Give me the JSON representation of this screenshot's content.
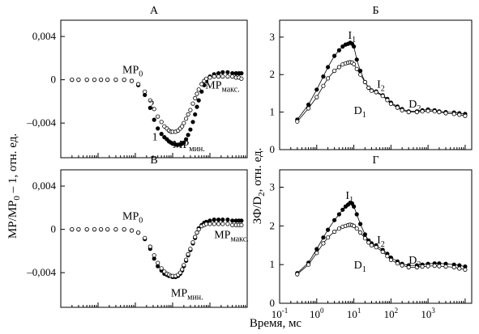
{
  "chart_data": [
    {
      "id": "A",
      "title": "А",
      "type": "scatter",
      "xscale": "log",
      "xlim": [
        0.01,
        1000
      ],
      "ylim": [
        -0.0072,
        0.0055
      ],
      "yticks": [
        0.004,
        0,
        -0.004
      ],
      "ytick_labels": [
        "0,004",
        "0",
        "–0,004"
      ],
      "series": [
        {
          "name": "1",
          "marker": "filled",
          "x": [
            0.02,
            0.03,
            0.05,
            0.08,
            0.12,
            0.18,
            0.3,
            0.5,
            0.8,
            1.2,
            1.8,
            2.5,
            3.2,
            4,
            5,
            6,
            7,
            8,
            9,
            10,
            12,
            14,
            16,
            18,
            20,
            23,
            26,
            30,
            35,
            40,
            45,
            50,
            60,
            70,
            80,
            100,
            130,
            170,
            220,
            300,
            400,
            500,
            600,
            700
          ],
          "y": [
            0,
            0,
            0,
            0,
            0,
            0,
            0,
            0,
            -0.0001,
            -0.0005,
            -0.0014,
            -0.0026,
            -0.0037,
            -0.0045,
            -0.005,
            -0.0053,
            -0.0055,
            -0.0057,
            -0.0058,
            -0.0059,
            -0.006,
            -0.006,
            -0.006,
            -0.0059,
            -0.0058,
            -0.0055,
            -0.0051,
            -0.0046,
            -0.0039,
            -0.0032,
            -0.0025,
            -0.0019,
            -0.0011,
            -0.0005,
            -0.0001,
            0.0003,
            0.0005,
            0.0006,
            0.0007,
            0.0007,
            0.0006,
            0.0006,
            0.0006,
            0.0006
          ]
        },
        {
          "name": "2",
          "marker": "open",
          "x": [
            0.02,
            0.03,
            0.05,
            0.08,
            0.12,
            0.18,
            0.3,
            0.5,
            0.8,
            1.2,
            1.8,
            2.5,
            3.2,
            4,
            5,
            6,
            7,
            8,
            9,
            10,
            12,
            14,
            16,
            18,
            20,
            23,
            26,
            30,
            35,
            40,
            45,
            50,
            60,
            70,
            80,
            100,
            130,
            170,
            220,
            300,
            400,
            500,
            600,
            700
          ],
          "y": [
            0,
            0,
            0,
            0,
            0,
            0,
            0,
            0,
            -0.0001,
            -0.0004,
            -0.0011,
            -0.0019,
            -0.0027,
            -0.0034,
            -0.0039,
            -0.0043,
            -0.0045,
            -0.0047,
            -0.0048,
            -0.0048,
            -0.0048,
            -0.0047,
            -0.0045,
            -0.0043,
            -0.004,
            -0.0036,
            -0.0032,
            -0.0028,
            -0.0022,
            -0.0017,
            -0.0013,
            -0.0009,
            -0.0004,
            -0.0001,
            0.0001,
            0.0002,
            0.0003,
            0.0003,
            0.0003,
            0.0003,
            0.0003,
            0.0002,
            0.0002,
            0.0001
          ]
        }
      ],
      "annotations": [
        {
          "text": "MP",
          "sub": "0",
          "x": 0.45,
          "y": 0.0006
        },
        {
          "text": "2",
          "x": 2.3,
          "y": -0.0026
        },
        {
          "text": "1",
          "x": 2.8,
          "y": -0.0056
        },
        {
          "text": "MP",
          "sub": "мин.",
          "x": 10,
          "y": -0.0063
        },
        {
          "text": "MP",
          "sub": "макс.",
          "x": 75,
          "y": -0.0008
        }
      ]
    },
    {
      "id": "B",
      "title": "Б",
      "type": "line",
      "xscale": "log",
      "xlim": [
        0.1,
        15000
      ],
      "ylim": [
        0,
        3.45
      ],
      "yticks": [
        0,
        1,
        2,
        3
      ],
      "ytick_labels": [
        "0",
        "1",
        "2",
        "3"
      ],
      "series": [
        {
          "name": "I",
          "marker": "filled",
          "x": [
            0.3,
            0.6,
            1,
            1.5,
            2,
            3,
            4,
            5,
            6,
            7,
            8,
            9,
            10,
            12,
            15,
            20,
            25,
            30,
            40,
            60,
            80,
            100,
            150,
            200,
            300,
            500,
            700,
            1000,
            1500,
            2000,
            3000,
            5000,
            7000,
            10000
          ],
          "y": [
            0.8,
            1.2,
            1.6,
            1.95,
            2.2,
            2.5,
            2.65,
            2.75,
            2.8,
            2.82,
            2.85,
            2.82,
            2.75,
            2.4,
            2.1,
            1.8,
            1.65,
            1.58,
            1.55,
            1.45,
            1.35,
            1.25,
            1.15,
            1.08,
            1.02,
            1.02,
            1.05,
            1.07,
            1.05,
            1.02,
            1,
            0.99,
            0.97,
            0.95
          ]
        },
        {
          "name": "D",
          "marker": "open",
          "x": [
            0.3,
            0.6,
            1,
            1.5,
            2,
            3,
            4,
            5,
            6,
            7,
            8,
            9,
            10,
            12,
            15,
            20,
            25,
            30,
            40,
            60,
            80,
            100,
            150,
            200,
            300,
            500,
            700,
            1000,
            1500,
            2000,
            3000,
            5000,
            7000,
            10000
          ],
          "y": [
            0.75,
            1.1,
            1.4,
            1.7,
            1.9,
            2.1,
            2.2,
            2.27,
            2.3,
            2.32,
            2.33,
            2.32,
            2.28,
            2.15,
            2,
            1.8,
            1.65,
            1.57,
            1.53,
            1.43,
            1.32,
            1.22,
            1.12,
            1.05,
            1,
            1,
            1.02,
            1.03,
            1.02,
            1,
            0.97,
            0.95,
            0.93,
            0.9
          ]
        }
      ],
      "annotations": [
        {
          "text": "I",
          "sub": "1",
          "x": 7,
          "y": 2.95
        },
        {
          "text": "I",
          "sub": "2",
          "x": 42,
          "y": 1.65
        },
        {
          "text": "D",
          "sub": "1",
          "x": 10,
          "y": 0.95
        },
        {
          "text": "D",
          "sub": "2",
          "x": 300,
          "y": 1.12
        }
      ]
    },
    {
      "id": "V",
      "title": "В",
      "type": "scatter",
      "xscale": "log",
      "xlim": [
        0.01,
        1000
      ],
      "ylim": [
        -0.0072,
        0.0055
      ],
      "yticks": [
        0.004,
        0,
        -0.004
      ],
      "ytick_labels": [
        "0,004",
        "0",
        "–0,004"
      ],
      "series": [
        {
          "name": "1",
          "marker": "filled",
          "x": [
            0.02,
            0.03,
            0.05,
            0.08,
            0.12,
            0.18,
            0.3,
            0.5,
            0.8,
            1.2,
            1.8,
            2.5,
            3.2,
            4,
            5,
            6,
            7,
            8,
            9,
            10,
            12,
            14,
            16,
            18,
            20,
            23,
            26,
            30,
            35,
            40,
            45,
            50,
            60,
            70,
            80,
            100,
            130,
            170,
            220,
            300,
            400,
            500,
            600,
            700
          ],
          "y": [
            0,
            0,
            0,
            0,
            0,
            0,
            0,
            0,
            -0.0001,
            -0.0003,
            -0.0009,
            -0.0018,
            -0.0027,
            -0.0034,
            -0.0038,
            -0.0041,
            -0.0042,
            -0.0043,
            -0.0043,
            -0.0044,
            -0.0044,
            -0.0043,
            -0.0041,
            -0.0038,
            -0.0034,
            -0.0029,
            -0.0024,
            -0.0019,
            -0.0013,
            -0.0008,
            -0.0003,
            0.0001,
            0.0004,
            0.0006,
            0.0007,
            0.0008,
            0.0009,
            0.0009,
            0.0009,
            0.0009,
            0.0008,
            0.0008,
            0.0008,
            0.0008
          ]
        },
        {
          "name": "2",
          "marker": "open",
          "x": [
            0.02,
            0.03,
            0.05,
            0.08,
            0.12,
            0.18,
            0.3,
            0.5,
            0.8,
            1.2,
            1.8,
            2.5,
            3.2,
            4,
            5,
            6,
            7,
            8,
            9,
            10,
            12,
            14,
            16,
            18,
            20,
            23,
            26,
            30,
            35,
            40,
            45,
            50,
            60,
            70,
            80,
            100,
            130,
            170,
            220,
            300,
            400,
            500,
            600,
            700
          ],
          "y": [
            0,
            0,
            0,
            0,
            0,
            0,
            0,
            0,
            -0.0001,
            -0.0003,
            -0.0008,
            -0.0016,
            -0.0024,
            -0.0031,
            -0.0036,
            -0.0039,
            -0.0041,
            -0.0042,
            -0.0043,
            -0.0043,
            -0.0043,
            -0.0042,
            -0.004,
            -0.0037,
            -0.0033,
            -0.0028,
            -0.0023,
            -0.0018,
            -0.0012,
            -0.0007,
            -0.0003,
            0,
            0.0003,
            0.0004,
            0.0005,
            0.0005,
            0.0005,
            0.0005,
            0.0005,
            0.0005,
            0.0004,
            0.0004,
            0.0004,
            0.0004
          ]
        }
      ],
      "annotations": [
        {
          "text": "MP",
          "sub": "0",
          "x": 0.45,
          "y": 0.0009
        },
        {
          "text": "MP",
          "sub": "мин.",
          "x": 9,
          "y": -0.0062
        },
        {
          "text": "MP",
          "sub": "макс.",
          "x": 130,
          "y": -0.0008
        }
      ]
    },
    {
      "id": "G",
      "title": "Г",
      "type": "line",
      "xscale": "log",
      "xlim": [
        0.1,
        15000
      ],
      "ylim": [
        0,
        3.45
      ],
      "yticks": [
        0,
        1,
        2,
        3
      ],
      "ytick_labels": [
        "0",
        "1",
        "2",
        "3"
      ],
      "xticks": [
        0.1,
        1,
        10,
        100,
        1000
      ],
      "xtick_labels": [
        {
          "base": "10",
          "exp": "-1"
        },
        {
          "base": "10",
          "exp": "0"
        },
        {
          "base": "10",
          "exp": "1"
        },
        {
          "base": "10",
          "exp": "2"
        },
        {
          "base": "10",
          "exp": "3"
        }
      ],
      "series": [
        {
          "name": "I",
          "marker": "filled",
          "x": [
            0.3,
            0.6,
            1,
            1.5,
            2,
            3,
            4,
            5,
            6,
            7,
            8,
            9,
            10,
            12,
            15,
            20,
            25,
            30,
            40,
            60,
            80,
            100,
            150,
            200,
            300,
            500,
            700,
            1000,
            1500,
            2000,
            3000,
            5000,
            7000,
            10000
          ],
          "y": [
            0.78,
            1.05,
            1.4,
            1.7,
            1.9,
            2.15,
            2.3,
            2.42,
            2.5,
            2.55,
            2.6,
            2.58,
            2.5,
            2.3,
            2.05,
            1.78,
            1.62,
            1.55,
            1.5,
            1.38,
            1.28,
            1.18,
            1.08,
            1.02,
            0.98,
            0.98,
            1,
            1.02,
            1.03,
            1.03,
            1.02,
            1,
            0.98,
            0.95
          ]
        },
        {
          "name": "D",
          "marker": "open",
          "x": [
            0.3,
            0.6,
            1,
            1.5,
            2,
            3,
            4,
            5,
            6,
            7,
            8,
            9,
            10,
            12,
            15,
            20,
            25,
            30,
            40,
            60,
            80,
            100,
            150,
            200,
            300,
            500,
            700,
            1000,
            1500,
            2000,
            3000,
            5000,
            7000,
            10000
          ],
          "y": [
            0.75,
            1,
            1.3,
            1.55,
            1.7,
            1.85,
            1.93,
            1.98,
            2,
            2.02,
            2.03,
            2.02,
            2,
            1.93,
            1.83,
            1.68,
            1.57,
            1.5,
            1.45,
            1.33,
            1.22,
            1.12,
            1.03,
            0.98,
            0.93,
            0.93,
            0.95,
            0.96,
            0.97,
            0.96,
            0.95,
            0.93,
            0.9,
            0.87
          ]
        }
      ],
      "annotations": [
        {
          "text": "I",
          "sub": "1",
          "x": 6,
          "y": 2.7
        },
        {
          "text": "I",
          "sub": "2",
          "x": 42,
          "y": 1.55
        },
        {
          "text": "D",
          "sub": "1",
          "x": 10,
          "y": 0.9
        },
        {
          "text": "D",
          "sub": "2",
          "x": 300,
          "y": 1.02
        }
      ]
    }
  ],
  "left_ylabel": {
    "text": "MP/MP",
    "sub": "0",
    "rest": " – 1, отн. ед."
  },
  "right_ylabel": {
    "text": "ЗФ/D",
    "sub": "2",
    "rest": ", отн. ед."
  },
  "xlabel": "Время, мс"
}
